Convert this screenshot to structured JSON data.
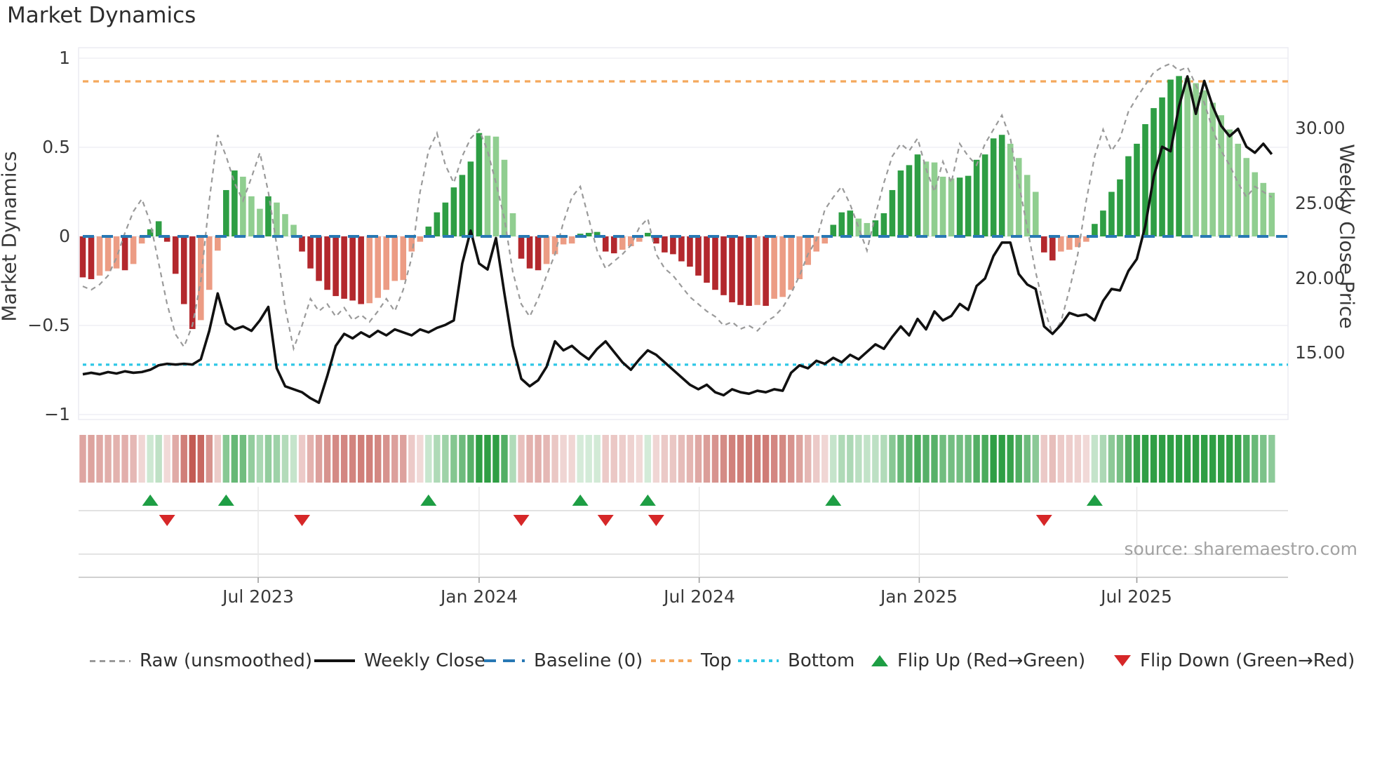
{
  "title": "Market Dynamics",
  "source_text": "source: sharemaestro.com",
  "axes": {
    "left_title": "Market Dynamics",
    "right_title": "Weekly Close Price",
    "left_ticks": [
      "1",
      "0.5",
      "0",
      "−0.5",
      "−1"
    ],
    "right_ticks": [
      "30.00",
      "25.00",
      "20.00",
      "15.00"
    ],
    "x_ticks": [
      "Jul 2023",
      "Jan 2024",
      "Jul 2024",
      "Jan 2025",
      "Jul 2025"
    ]
  },
  "legend": {
    "items": [
      {
        "label": "Raw (unsmoothed)",
        "kind": "dashed-line",
        "color": "#9a9a9a"
      },
      {
        "label": "Weekly Close",
        "kind": "solid-line",
        "color": "#111111"
      },
      {
        "label": "Baseline (0)",
        "kind": "long-dash-line",
        "color": "#2878b4"
      },
      {
        "label": "Top",
        "kind": "dotted-line",
        "color": "#f4a85c"
      },
      {
        "label": "Bottom",
        "kind": "dotted-line",
        "color": "#2ec7e6"
      },
      {
        "label": "Flip Up (Red→Green)",
        "kind": "triangle-up",
        "color": "#1e9e44"
      },
      {
        "label": "Flip Down (Green→Red)",
        "kind": "triangle-down",
        "color": "#d62728"
      }
    ]
  },
  "colors": {
    "bar_dark_green": "#2e9e44",
    "bar_light_green": "#90ce90",
    "bar_dark_red": "#b3282d",
    "bar_light_red": "#ec9c84",
    "heat_green": "#2f9e44",
    "heat_red": "#c0544c",
    "baseline_blue": "#2878b4",
    "top_orange": "#f4a85c",
    "bottom_cyan": "#2ec7e6",
    "raw_gray": "#9a9a9a",
    "price_black": "#111111",
    "grid": "#ececf2",
    "marker_up_green": "#1e9e44",
    "marker_down_red": "#d62728"
  },
  "chart_data": {
    "type": "bar",
    "title": "Market Dynamics",
    "x_unit": "week",
    "n_weeks": 142,
    "ylim_left": [
      -1,
      1
    ],
    "left_axis_ticks": [
      1,
      0.5,
      0,
      -0.5,
      -1
    ],
    "right_axis_ticks": [
      30,
      25,
      20,
      15
    ],
    "x_tick_weeks": [
      20.8,
      47.0,
      73.1,
      99.2,
      125.0
    ],
    "x_tick_labels": [
      "Jul 2023",
      "Jan 2024",
      "Jul 2024",
      "Jan 2025",
      "Jul 2025"
    ],
    "baseline": 0,
    "top_threshold": 0.87,
    "bottom_threshold": -0.72,
    "legend_position": "bottom",
    "grid": true,
    "series": [
      {
        "name": "Oscillator (bars)",
        "axis": "left",
        "values": [
          -0.23,
          -0.24,
          -0.22,
          -0.195,
          -0.18,
          -0.19,
          -0.155,
          -0.04,
          0.04,
          0.085,
          -0.03,
          -0.21,
          -0.38,
          -0.52,
          -0.47,
          -0.3,
          -0.08,
          0.26,
          0.37,
          0.335,
          0.225,
          0.155,
          0.225,
          0.19,
          0.125,
          0.065,
          -0.085,
          -0.18,
          -0.25,
          -0.3,
          -0.335,
          -0.35,
          -0.36,
          -0.38,
          -0.375,
          -0.345,
          -0.3,
          -0.25,
          -0.245,
          -0.085,
          -0.03,
          0.055,
          0.135,
          0.19,
          0.275,
          0.345,
          0.42,
          0.58,
          0.565,
          0.56,
          0.43,
          0.13,
          -0.125,
          -0.18,
          -0.19,
          -0.155,
          -0.1,
          -0.045,
          -0.04,
          0.015,
          0.02,
          0.025,
          -0.085,
          -0.095,
          -0.075,
          -0.055,
          -0.03,
          0.02,
          -0.04,
          -0.09,
          -0.1,
          -0.14,
          -0.17,
          -0.22,
          -0.26,
          -0.3,
          -0.33,
          -0.37,
          -0.385,
          -0.39,
          -0.385,
          -0.39,
          -0.35,
          -0.34,
          -0.3,
          -0.24,
          -0.16,
          -0.085,
          -0.04,
          0.065,
          0.135,
          0.145,
          0.1,
          0.075,
          0.09,
          0.13,
          0.26,
          0.37,
          0.4,
          0.46,
          0.42,
          0.415,
          0.335,
          0.325,
          0.33,
          0.34,
          0.43,
          0.46,
          0.55,
          0.57,
          0.52,
          0.44,
          0.345,
          0.25,
          -0.09,
          -0.135,
          -0.085,
          -0.075,
          -0.06,
          -0.03,
          0.07,
          0.145,
          0.25,
          0.32,
          0.45,
          0.52,
          0.63,
          0.72,
          0.78,
          0.88,
          0.9,
          0.89,
          0.86,
          0.82,
          0.75,
          0.68,
          0.6,
          0.52,
          0.44,
          0.36,
          0.3,
          0.245
        ]
      },
      {
        "name": "Raw (unsmoothed)",
        "axis": "left",
        "values": [
          -0.28,
          -0.3,
          -0.27,
          -0.22,
          -0.12,
          0.02,
          0.14,
          0.21,
          0.08,
          -0.15,
          -0.38,
          -0.55,
          -0.62,
          -0.5,
          -0.25,
          0.2,
          0.57,
          0.45,
          0.3,
          0.2,
          0.33,
          0.47,
          0.25,
          -0.05,
          -0.4,
          -0.63,
          -0.5,
          -0.35,
          -0.42,
          -0.38,
          -0.45,
          -0.4,
          -0.47,
          -0.44,
          -0.48,
          -0.42,
          -0.35,
          -0.42,
          -0.3,
          -0.12,
          0.25,
          0.48,
          0.58,
          0.4,
          0.3,
          0.45,
          0.55,
          0.6,
          0.48,
          0.3,
          0.1,
          -0.2,
          -0.38,
          -0.45,
          -0.35,
          -0.22,
          -0.1,
          0.08,
          0.22,
          0.28,
          0.1,
          -0.08,
          -0.18,
          -0.14,
          -0.1,
          -0.05,
          0.05,
          0.1,
          -0.1,
          -0.18,
          -0.22,
          -0.28,
          -0.34,
          -0.38,
          -0.42,
          -0.45,
          -0.5,
          -0.48,
          -0.52,
          -0.5,
          -0.53,
          -0.48,
          -0.45,
          -0.4,
          -0.32,
          -0.22,
          -0.1,
          -0.02,
          0.15,
          0.22,
          0.28,
          0.18,
          0.05,
          -0.08,
          0.12,
          0.3,
          0.45,
          0.52,
          0.48,
          0.55,
          0.38,
          0.25,
          0.42,
          0.3,
          0.52,
          0.45,
          0.4,
          0.52,
          0.6,
          0.68,
          0.55,
          0.3,
          0.05,
          -0.2,
          -0.4,
          -0.55,
          -0.48,
          -0.3,
          -0.1,
          0.2,
          0.45,
          0.6,
          0.48,
          0.55,
          0.7,
          0.78,
          0.85,
          0.92,
          0.95,
          0.97,
          0.93,
          0.95,
          0.85,
          0.75,
          0.6,
          0.48,
          0.4,
          0.3,
          0.22,
          0.28,
          0.25,
          0.22
        ]
      },
      {
        "name": "Weekly Close",
        "axis": "right",
        "values": [
          13.6,
          13.7,
          13.6,
          13.75,
          13.65,
          13.8,
          13.7,
          13.75,
          13.9,
          14.2,
          14.3,
          14.25,
          14.3,
          14.25,
          14.6,
          16.5,
          19.0,
          17.0,
          16.6,
          16.8,
          16.5,
          17.2,
          18.1,
          14.0,
          12.8,
          12.6,
          12.4,
          12.0,
          11.7,
          13.5,
          15.5,
          16.3,
          16.0,
          16.4,
          16.1,
          16.5,
          16.2,
          16.6,
          16.4,
          16.2,
          16.6,
          16.4,
          16.7,
          16.9,
          17.2,
          21.0,
          23.2,
          21.0,
          20.6,
          22.7,
          19.0,
          15.5,
          13.3,
          12.8,
          13.2,
          14.1,
          15.8,
          15.2,
          15.5,
          15.0,
          14.6,
          15.3,
          15.8,
          15.1,
          14.4,
          13.9,
          14.6,
          15.2,
          14.9,
          14.4,
          13.9,
          13.4,
          12.9,
          12.6,
          12.9,
          12.4,
          12.2,
          12.6,
          12.4,
          12.3,
          12.5,
          12.4,
          12.6,
          12.5,
          13.7,
          14.2,
          14.0,
          14.5,
          14.3,
          14.7,
          14.4,
          14.9,
          14.6,
          15.1,
          15.6,
          15.3,
          16.1,
          16.8,
          16.2,
          17.3,
          16.6,
          17.8,
          17.2,
          17.5,
          18.3,
          17.9,
          19.5,
          20.0,
          21.5,
          22.4,
          22.4,
          20.3,
          19.6,
          19.3,
          16.8,
          16.3,
          16.9,
          17.7,
          17.5,
          17.6,
          17.2,
          18.5,
          19.3,
          19.2,
          20.5,
          21.3,
          23.5,
          26.8,
          28.8,
          28.5,
          31.5,
          33.5,
          31.0,
          33.2,
          31.5,
          30.2,
          29.5,
          30.0,
          28.8,
          28.4,
          29.0,
          28.3
        ]
      }
    ],
    "flip_up_weeks": [
      8,
      17,
      41,
      59,
      67,
      89,
      120
    ],
    "flip_down_weeks": [
      10,
      26,
      52,
      62,
      68,
      114
    ]
  },
  "legend_layout_lefts": [
    128,
    448,
    690,
    928,
    1052,
    1242,
    1588
  ]
}
